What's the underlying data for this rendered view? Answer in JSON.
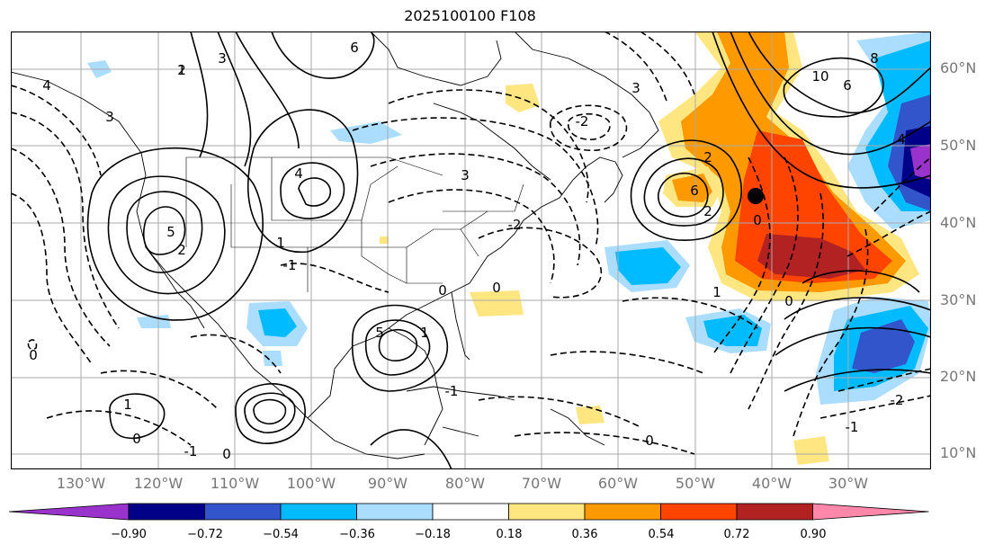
{
  "title": "2025100100 F108",
  "lat_labels": [
    "60°N",
    "50°N",
    "40°N",
    "30°N",
    "20°N",
    "10°N"
  ],
  "lon_labels": [
    "130°W",
    "120°W",
    "110°W",
    "100°W",
    "90°W",
    "80°W",
    "70°W",
    "60°W",
    "50°W",
    "40°W",
    "30°W"
  ],
  "colorbar": {
    "ticks": [
      "−0.90",
      "−0.72",
      "−0.54",
      "−0.36",
      "−0.18",
      "0.18",
      "0.36",
      "0.54",
      "0.72",
      "0.90"
    ],
    "colors": [
      "#9933cc",
      "#000088",
      "#3355cc",
      "#00bbff",
      "#aaddff",
      "#ffffff",
      "#ffe680",
      "#ff9900",
      "#ff4400",
      "#b22222",
      "#ff88aa"
    ]
  },
  "contour_labels": [
    "6",
    "4",
    "2",
    "0",
    "-1",
    "-2",
    "3",
    "5",
    "8",
    "10",
    "1"
  ],
  "marker": "black dot near 43°W 41°N"
}
